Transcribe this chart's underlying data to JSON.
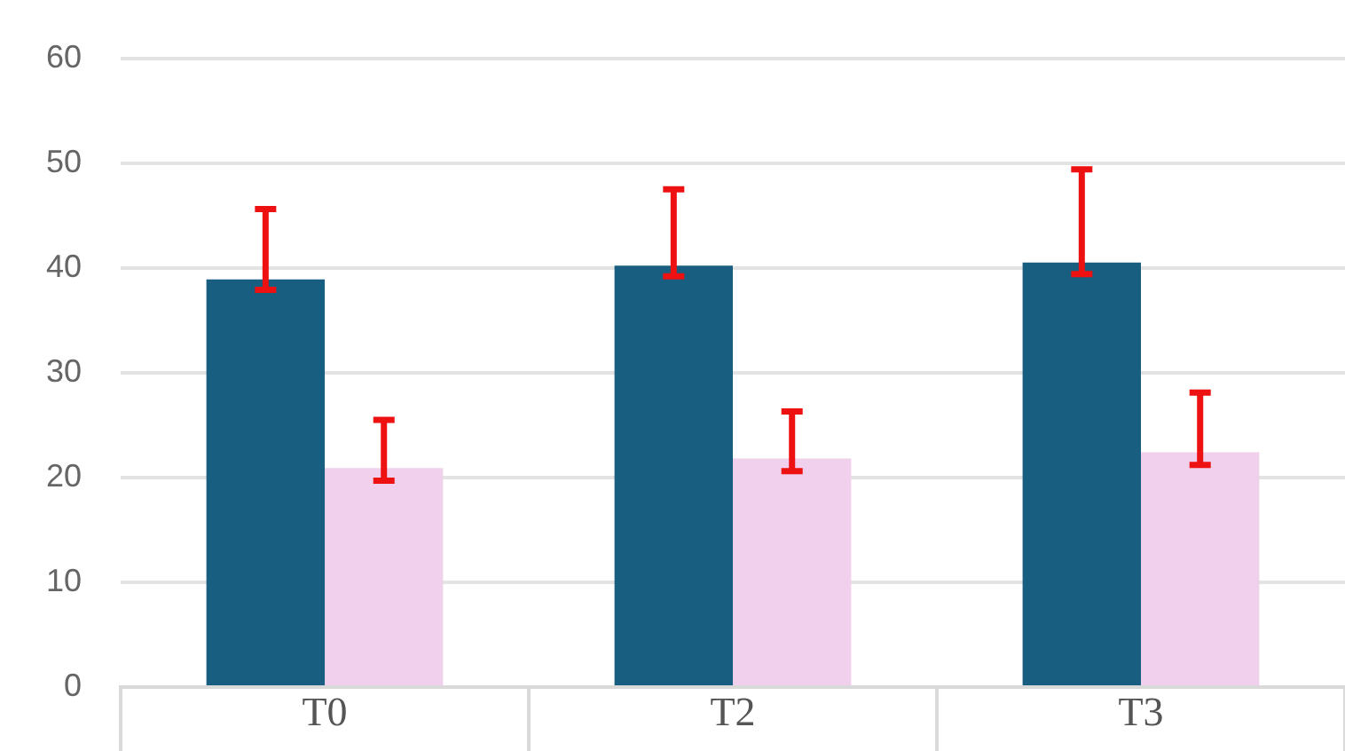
{
  "chart_data": {
    "type": "bar",
    "categories": [
      "T0",
      "T2",
      "T3"
    ],
    "series": [
      {
        "color": "#175e80",
        "values": [
          38.9,
          40.2,
          40.5
        ],
        "errors": [
          [
            37.9,
            45.6
          ],
          [
            39.2,
            47.5
          ],
          [
            39.4,
            49.4
          ]
        ]
      },
      {
        "color": "#f0d0ec",
        "values": [
          20.9,
          21.8,
          22.4
        ],
        "errors": [
          [
            19.7,
            25.5
          ],
          [
            20.6,
            26.3
          ],
          [
            21.2,
            28.1
          ]
        ]
      }
    ],
    "ylim": [
      0,
      60
    ],
    "yticks": [
      0,
      10,
      20,
      30,
      40,
      50,
      60
    ],
    "grid": "y",
    "legend": false
  }
}
